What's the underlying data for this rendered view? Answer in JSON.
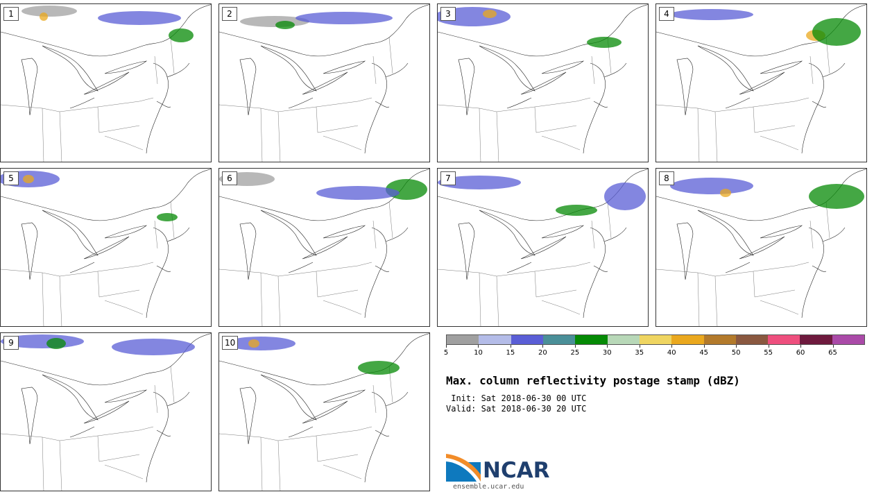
{
  "panels": [
    {
      "label": "1"
    },
    {
      "label": "2"
    },
    {
      "label": "3"
    },
    {
      "label": "4"
    },
    {
      "label": "5"
    },
    {
      "label": "6"
    },
    {
      "label": "7"
    },
    {
      "label": "8"
    },
    {
      "label": "9"
    },
    {
      "label": "10"
    }
  ],
  "colorbar": {
    "colors": [
      "#a0a0a0",
      "#b4bce8",
      "#5a5ed6",
      "#4a8f98",
      "#058a05",
      "#b8d8b8",
      "#efd561",
      "#eaa81e",
      "#b37a2b",
      "#8a5840",
      "#ee4f7e",
      "#6e1a3e",
      "#aa4aa8"
    ],
    "ticks": [
      "5",
      "10",
      "15",
      "20",
      "25",
      "30",
      "35",
      "40",
      "45",
      "50",
      "55",
      "60",
      "65"
    ]
  },
  "title": "Max. column reflectivity postage stamp (dBZ)",
  "init_line": " Init: Sat 2018-06-30 00 UTC",
  "valid_line": "Valid: Sat 2018-06-30 20 UTC",
  "logo": {
    "name": "NCAR",
    "url_text": "ensemble.ucar.edu"
  }
}
